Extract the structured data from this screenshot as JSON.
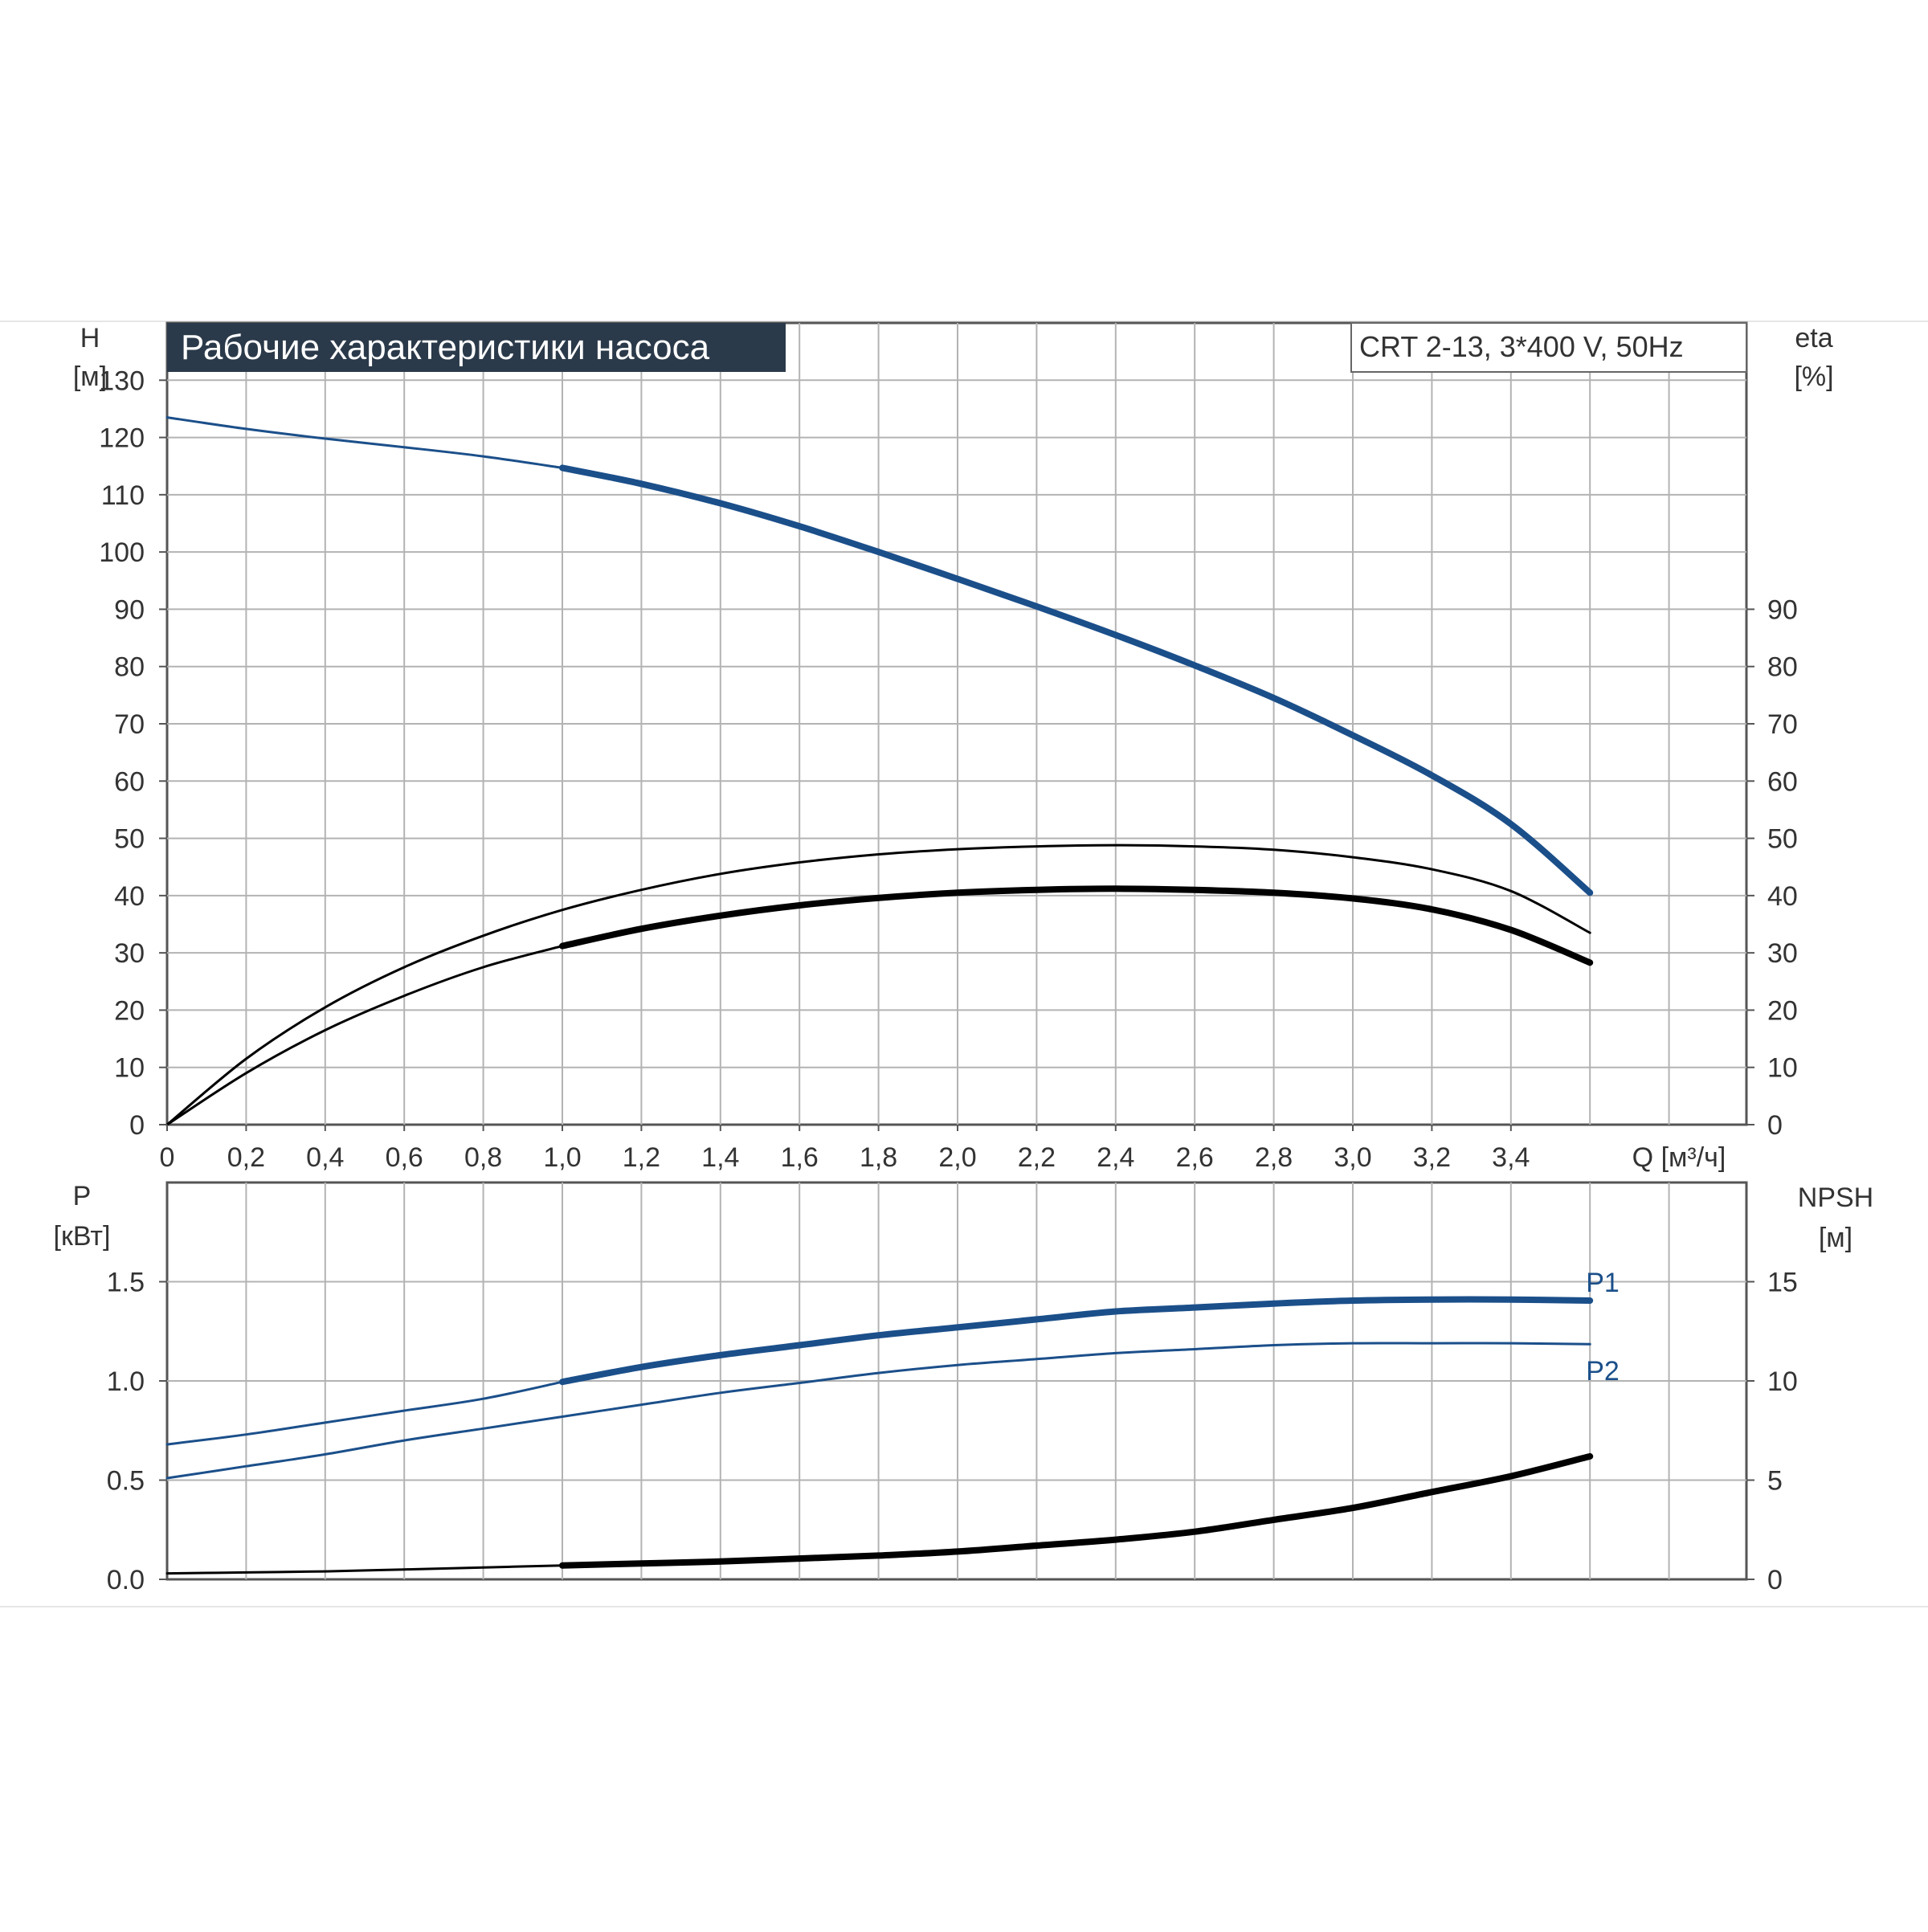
{
  "title_box": {
    "text": "Рабочие характеристики насоса",
    "bg_color": "#2b3a4a",
    "text_color": "#ffffff"
  },
  "model_box": {
    "text": "CRT 2-13, 3*400 V, 50Hz"
  },
  "colors": {
    "blue": "#1b4f8a",
    "black": "#000000",
    "grid": "#b3b3b3",
    "axis": "#555555"
  },
  "chart_data": [
    {
      "type": "line",
      "title": "Рабочие характеристики насоса",
      "x_axis": {
        "label": "Q [м³/ч]",
        "range": [
          0,
          4.0
        ],
        "ticks": [
          "0",
          "0,2",
          "0,4",
          "0,6",
          "0,8",
          "1,0",
          "1,2",
          "1,4",
          "1,6",
          "1,8",
          "2,0",
          "2,2",
          "2,4",
          "2,6",
          "2,8",
          "3,0",
          "3,2",
          "3,4"
        ]
      },
      "y_left": {
        "label_line1": "H",
        "label_line2": "[м]",
        "range": [
          0,
          140
        ],
        "ticks": [
          "0",
          "10",
          "20",
          "30",
          "40",
          "50",
          "60",
          "70",
          "80",
          "90",
          "100",
          "110",
          "120",
          "130"
        ]
      },
      "y_right": {
        "label_line1": "eta",
        "label_line2": "[%]",
        "range": [
          0,
          140
        ],
        "ticks": [
          "0",
          "10",
          "20",
          "30",
          "40",
          "50",
          "60",
          "70",
          "80",
          "90"
        ]
      },
      "grid": true,
      "series": [
        {
          "key": "H",
          "axis": "left",
          "color": "#1b4f8a",
          "x": [
            0,
            0.2,
            0.4,
            0.6,
            0.8,
            1.0,
            1.2,
            1.4,
            1.6,
            1.8,
            2.0,
            2.2,
            2.4,
            2.6,
            2.8,
            3.0,
            3.2,
            3.4,
            3.6
          ],
          "y": [
            123.5,
            121.5,
            119.8,
            118.3,
            116.7,
            114.7,
            111.9,
            108.5,
            104.5,
            100.0,
            95.3,
            90.5,
            85.5,
            80.2,
            74.5,
            68.0,
            61.0,
            52.5,
            40.5
          ],
          "thin_until": 1.0
        },
        {
          "key": "eta_upper",
          "axis": "right",
          "color": "#000000",
          "x": [
            0,
            0.2,
            0.4,
            0.6,
            0.8,
            1.0,
            1.2,
            1.4,
            1.6,
            1.8,
            2.0,
            2.2,
            2.4,
            2.6,
            2.8,
            3.0,
            3.2,
            3.4,
            3.6
          ],
          "y": [
            0,
            11.5,
            20.5,
            27.5,
            33.0,
            37.5,
            41.0,
            43.8,
            45.8,
            47.2,
            48.1,
            48.6,
            48.8,
            48.6,
            48.0,
            46.7,
            44.6,
            40.8,
            33.5
          ],
          "thin_until": 3.7
        },
        {
          "key": "eta_lower",
          "axis": "right",
          "color": "#000000",
          "x": [
            0,
            0.2,
            0.4,
            0.6,
            0.8,
            1.0,
            1.2,
            1.4,
            1.6,
            1.8,
            2.0,
            2.2,
            2.4,
            2.6,
            2.8,
            3.0,
            3.2,
            3.4,
            3.6
          ],
          "y": [
            0,
            9.0,
            16.5,
            22.5,
            27.5,
            31.2,
            34.2,
            36.5,
            38.3,
            39.6,
            40.5,
            41.0,
            41.2,
            41.0,
            40.5,
            39.5,
            37.6,
            34.0,
            28.3
          ],
          "thin_until": 1.0
        }
      ]
    },
    {
      "type": "line",
      "x_axis": {
        "range": [
          0,
          4.0
        ]
      },
      "y_left": {
        "label_line1": "P",
        "label_line2": "[кВт]",
        "range": [
          0,
          2.0
        ],
        "ticks": [
          "0.0",
          "0.5",
          "1.0",
          "1.5"
        ]
      },
      "y_right": {
        "label_line1": "NPSH",
        "label_line2": "[м]",
        "range": [
          0,
          20
        ],
        "ticks": [
          "0",
          "5",
          "10",
          "15"
        ]
      },
      "grid": true,
      "series": [
        {
          "key": "P1",
          "name": "P1",
          "axis": "left",
          "color": "#1b4f8a",
          "x": [
            0,
            0.2,
            0.4,
            0.6,
            0.8,
            1.0,
            1.2,
            1.4,
            1.6,
            1.8,
            2.0,
            2.2,
            2.4,
            2.6,
            2.8,
            3.0,
            3.2,
            3.4,
            3.6
          ],
          "y": [
            0.68,
            0.73,
            0.79,
            0.85,
            0.91,
            0.995,
            1.07,
            1.13,
            1.18,
            1.23,
            1.27,
            1.31,
            1.35,
            1.37,
            1.39,
            1.405,
            1.41,
            1.41,
            1.405
          ],
          "thin_until": 1.0
        },
        {
          "key": "P2",
          "name": "P2",
          "axis": "left",
          "color": "#1b4f8a",
          "x": [
            0,
            0.2,
            0.4,
            0.6,
            0.8,
            1.0,
            1.2,
            1.4,
            1.6,
            1.8,
            2.0,
            2.2,
            2.4,
            2.6,
            2.8,
            3.0,
            3.2,
            3.4,
            3.6
          ],
          "y": [
            0.51,
            0.57,
            0.63,
            0.7,
            0.76,
            0.82,
            0.88,
            0.94,
            0.99,
            1.04,
            1.08,
            1.11,
            1.14,
            1.16,
            1.18,
            1.19,
            1.19,
            1.19,
            1.185
          ],
          "thin_until": 3.7
        },
        {
          "key": "NPSH",
          "axis": "right",
          "color": "#000000",
          "x": [
            0,
            0.2,
            0.4,
            0.6,
            0.8,
            1.0,
            1.2,
            1.4,
            1.6,
            1.8,
            2.0,
            2.2,
            2.4,
            2.6,
            2.8,
            3.0,
            3.2,
            3.4,
            3.6
          ],
          "y": [
            0.3,
            0.35,
            0.4,
            0.5,
            0.6,
            0.7,
            0.8,
            0.9,
            1.05,
            1.2,
            1.4,
            1.7,
            2.0,
            2.4,
            3.0,
            3.6,
            4.4,
            5.2,
            6.2
          ],
          "thin_until": 1.0
        }
      ]
    }
  ]
}
